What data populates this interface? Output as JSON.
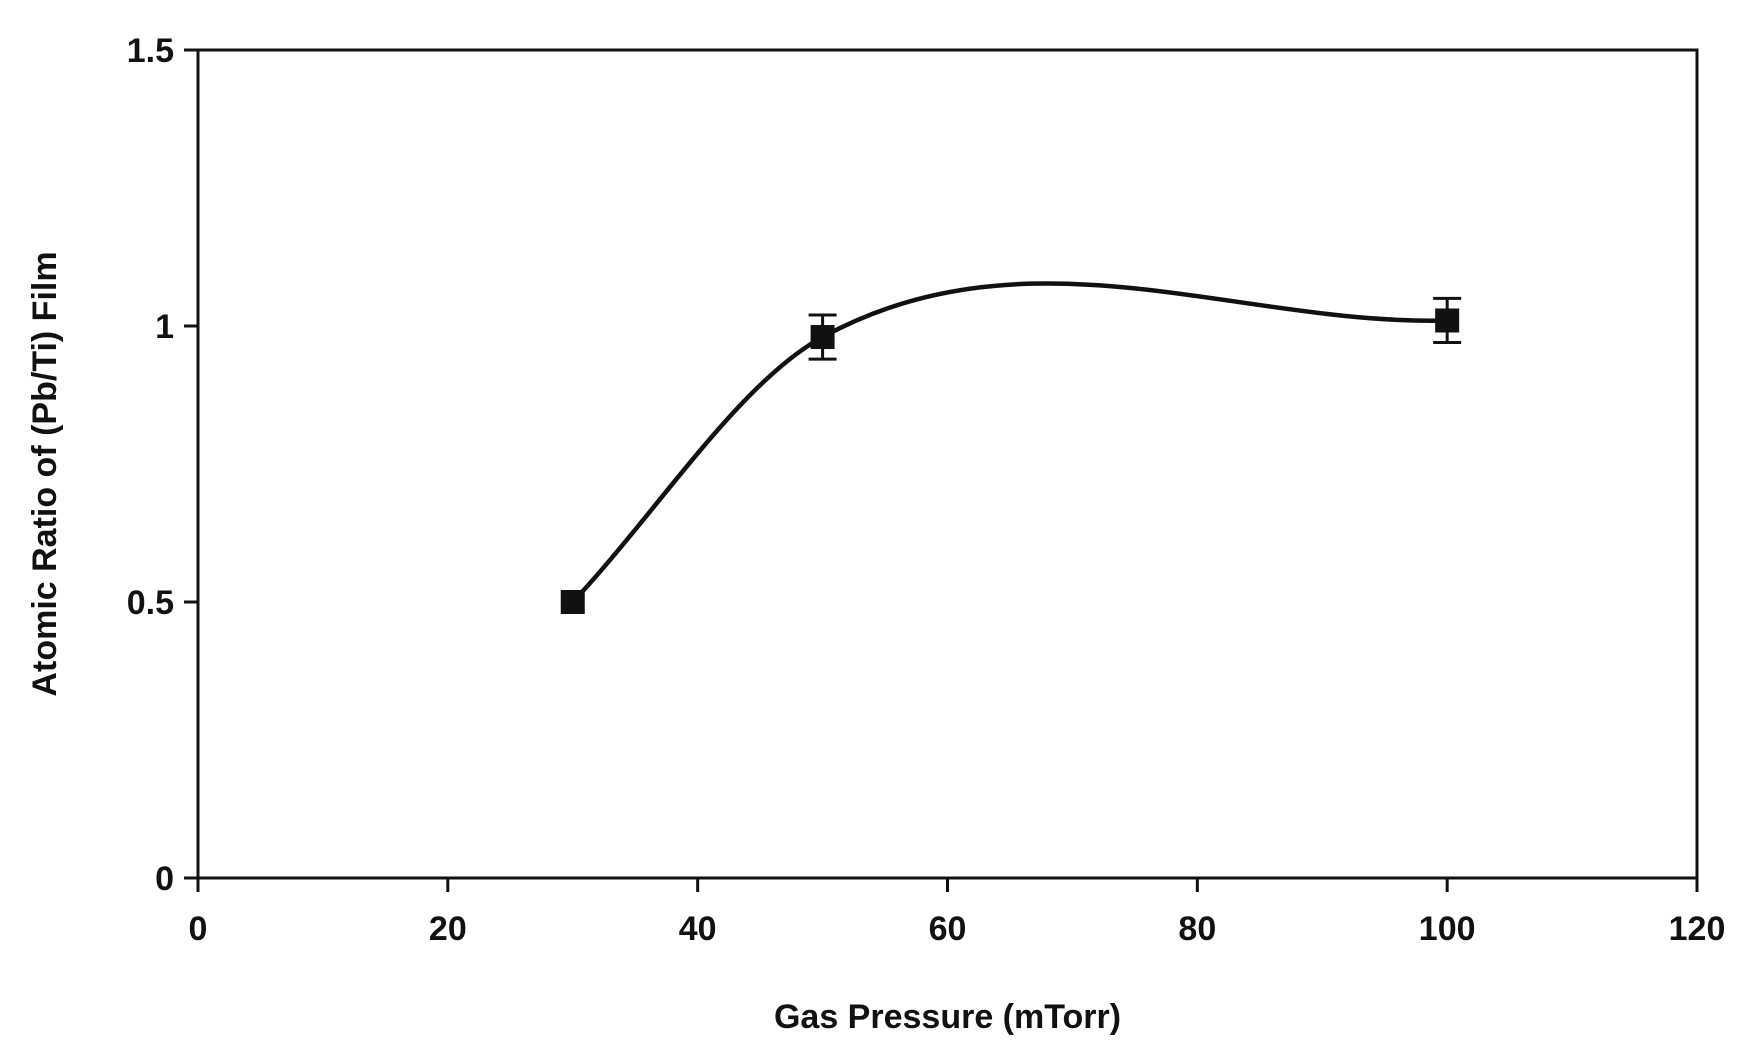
{
  "chart_data": {
    "type": "line",
    "title": "",
    "xlabel": "Gas Pressure (mTorr)",
    "ylabel": "Atomic Ratio of (Pb/Ti) Film",
    "xlim": [
      0,
      120
    ],
    "ylim": [
      0,
      1.5
    ],
    "x_ticks": [
      0,
      20,
      40,
      60,
      80,
      100,
      120
    ],
    "y_ticks": [
      0,
      0.5,
      1,
      1.5
    ],
    "x_tick_labels": [
      "0",
      "20",
      "40",
      "60",
      "80",
      "100",
      "120"
    ],
    "y_tick_labels": [
      "0",
      "0.5",
      "1",
      "1.5"
    ],
    "grid": false,
    "legend": "none",
    "smooth": true,
    "marker": "square",
    "series": [
      {
        "x": [
          30,
          50,
          100
        ],
        "y": [
          0.5,
          0.98,
          1.01
        ],
        "error": [
          0,
          0.04,
          0.04
        ]
      }
    ],
    "colors": {
      "line": "#111111",
      "marker": "#111111",
      "axis": "#111111"
    }
  }
}
